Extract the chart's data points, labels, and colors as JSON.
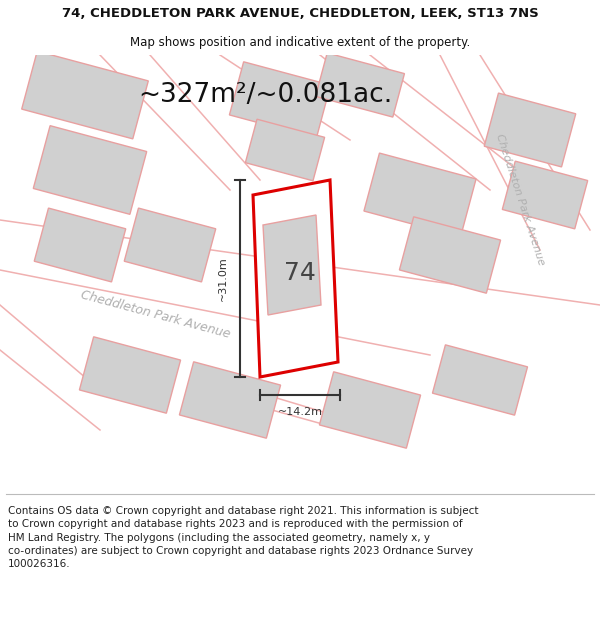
{
  "title_line1": "74, CHEDDLETON PARK AVENUE, CHEDDLETON, LEEK, ST13 7NS",
  "title_line2": "Map shows position and indicative extent of the property.",
  "area_text": "~327m²/~0.081ac.",
  "number_label": "74",
  "width_label": "~14.2m",
  "height_label": "~31.0m",
  "street_label_main": "Cheddleton Park Avenue",
  "street_label_right": "Cheddleton Park Avenue",
  "footer_line1": "Contains OS data © Crown copyright and database right 2021. This information is subject",
  "footer_line2": "to Crown copyright and database rights 2023 and is reproduced with the permission of",
  "footer_line3": "HM Land Registry. The polygons (including the associated geometry, namely x, y",
  "footer_line4": "co-ordinates) are subject to Crown copyright and database rights 2023 Ordnance Survey",
  "footer_line5": "100026316.",
  "bg_color": "#ffffff",
  "map_bg": "#ffffff",
  "plot_color": "#dd0000",
  "neighbor_fill": "#d0d0d0",
  "neighbor_edge": "#e8a0a0",
  "road_edge": "#f0b0b0",
  "dim_color": "#333333",
  "text_color": "#333333",
  "street_color": "#b0b0b0",
  "title_fontsize": 9.5,
  "subtitle_fontsize": 8.5,
  "area_fontsize": 19,
  "num_fontsize": 18,
  "label_fontsize": 8,
  "street_fontsize": 9,
  "footer_fontsize": 7.5
}
